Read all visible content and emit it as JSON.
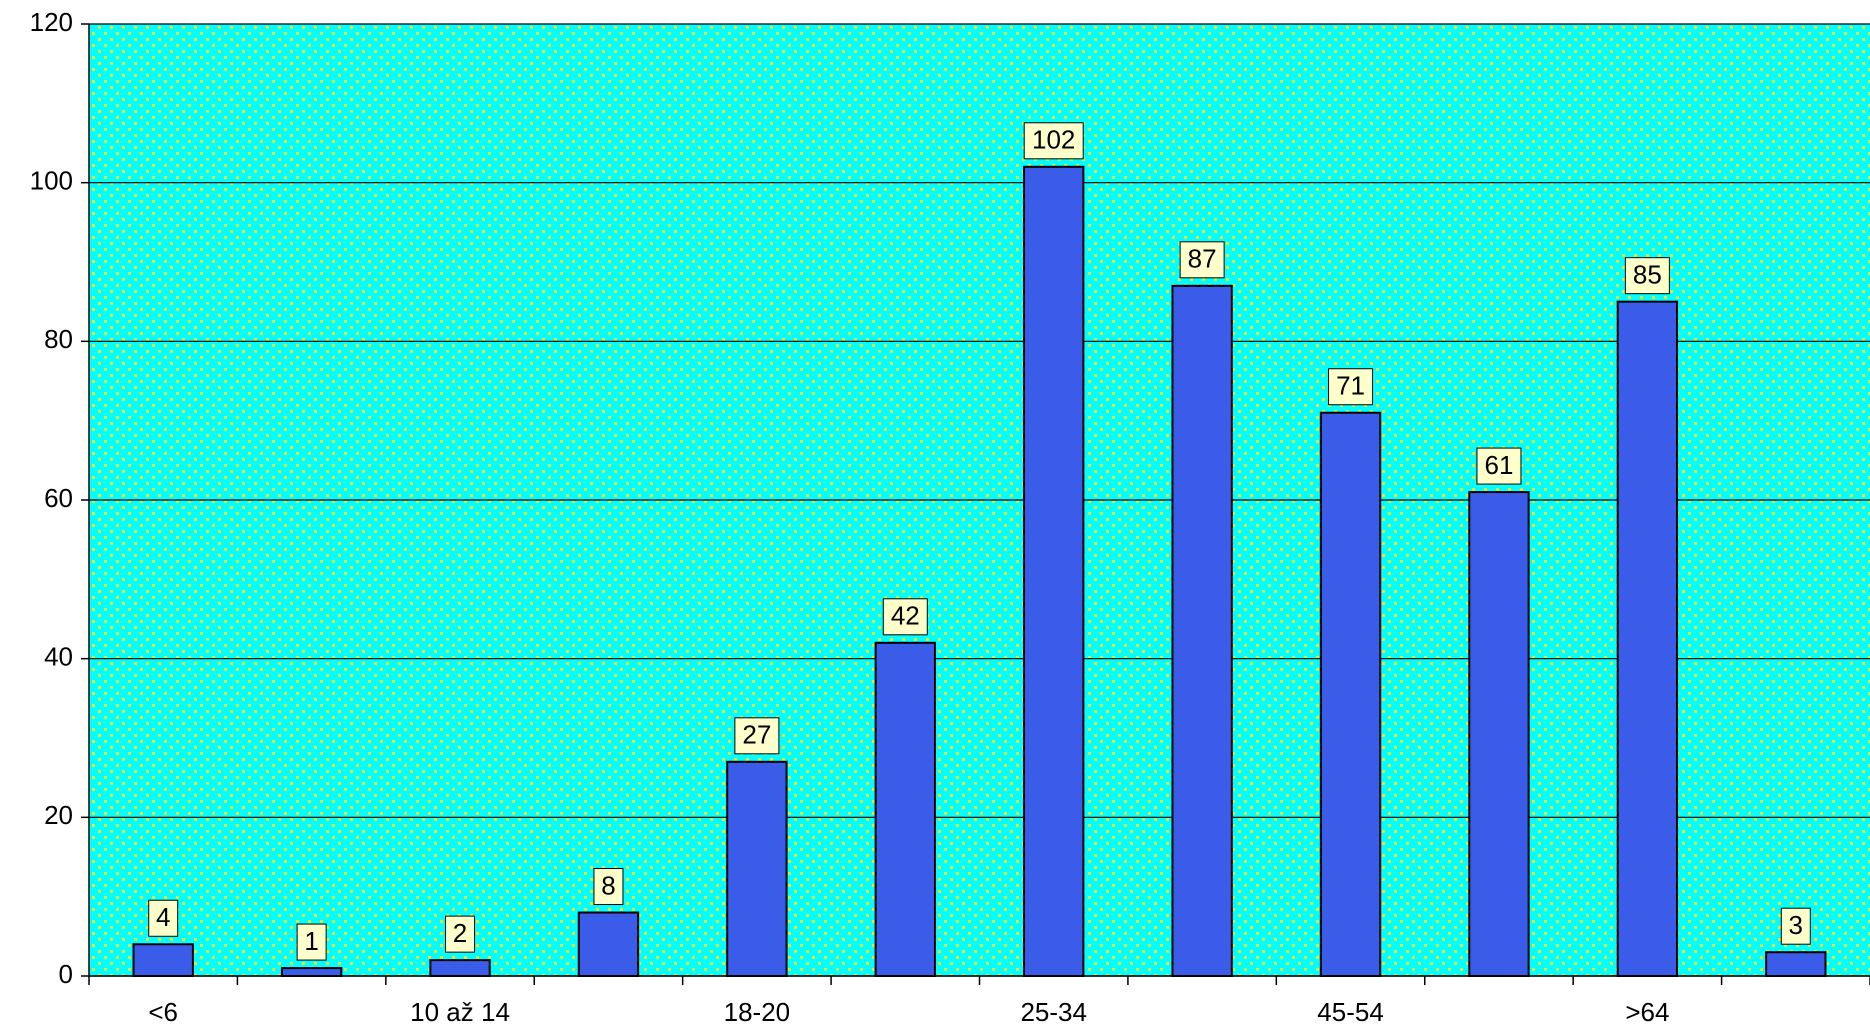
{
  "chart_data": {
    "type": "bar",
    "categories": [
      "<6",
      null,
      "10 až 14",
      null,
      "18-20",
      null,
      "25-34",
      null,
      "45-54",
      null,
      ">64",
      null
    ],
    "values": [
      4,
      1,
      2,
      8,
      27,
      42,
      102,
      87,
      71,
      61,
      85,
      3
    ],
    "color": "#3a5ce8",
    "ylim": [
      0,
      120
    ],
    "yticks": [
      0,
      20,
      40,
      60,
      80,
      100,
      120
    ],
    "grid": true
  }
}
